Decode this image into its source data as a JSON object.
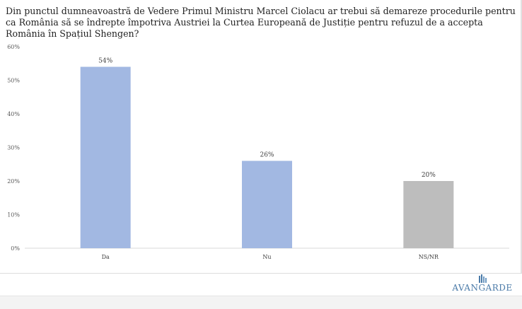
{
  "title": "Din punctul dumneavoastră de Vedere Primul Ministru Marcel Ciolacu ar trebui să demareze procedurile pentru ca România să se îndrepte împotriva Austriei la Curtea Europeană de Justiție pentru refuzul de a accepta România în Spațiul Shengen?",
  "brand": "AVANGARDE",
  "colors": {
    "bar_primary": "#a2b8e2",
    "bar_neutral": "#bdbdbd",
    "brand": "#4a7aa8"
  },
  "chart_data": {
    "type": "bar",
    "title": "Din punctul dumneavoastră de Vedere Primul Ministru Marcel Ciolacu ar trebui să demareze procedurile pentru ca România să se îndrepte împotriva Austriei la Curtea Europeană de Justiție pentru refuzul de a accepta România în Spațiul Shengen?",
    "categories": [
      "Da",
      "Nu",
      "NS/NR"
    ],
    "values": [
      54,
      26,
      20
    ],
    "value_labels": [
      "54%",
      "26%",
      "20%"
    ],
    "ylim": [
      0,
      60
    ],
    "yticks": [
      "0%",
      "10%",
      "20%",
      "30%",
      "40%",
      "50%",
      "60%"
    ],
    "xlabel": "",
    "ylabel": "",
    "grid": false,
    "legend": "none",
    "bar_colors": [
      "#a2b8e2",
      "#a2b8e2",
      "#bdbdbd"
    ]
  }
}
